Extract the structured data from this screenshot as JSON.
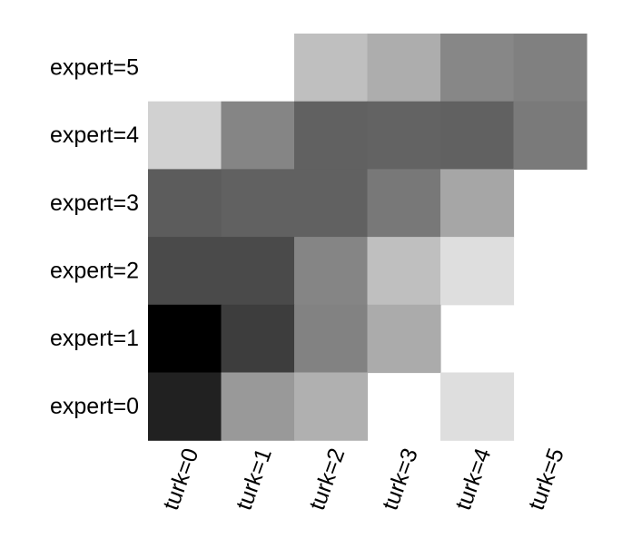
{
  "chart_data": {
    "type": "heatmap",
    "title": "",
    "xlabel": "",
    "ylabel": "",
    "x_categories": [
      "turk=0",
      "turk=1",
      "turk=2",
      "turk=3",
      "turk=4",
      "turk=5"
    ],
    "y_categories": [
      "expert=5",
      "expert=4",
      "expert=3",
      "expert=2",
      "expert=1",
      "expert=0"
    ],
    "colormap": "gray (white = low/none, black = high)",
    "grid": false,
    "legend": "none",
    "values": [
      [
        null,
        null,
        0.25,
        0.32,
        0.47,
        0.5
      ],
      [
        0.18,
        0.48,
        0.62,
        0.61,
        0.62,
        0.52
      ],
      [
        0.64,
        0.62,
        0.62,
        0.53,
        0.35,
        null
      ],
      [
        0.71,
        0.71,
        0.48,
        0.25,
        0.13,
        null
      ],
      [
        1.0,
        0.76,
        0.49,
        0.33,
        null,
        null
      ],
      [
        0.87,
        0.4,
        0.31,
        null,
        0.13,
        null
      ]
    ]
  }
}
